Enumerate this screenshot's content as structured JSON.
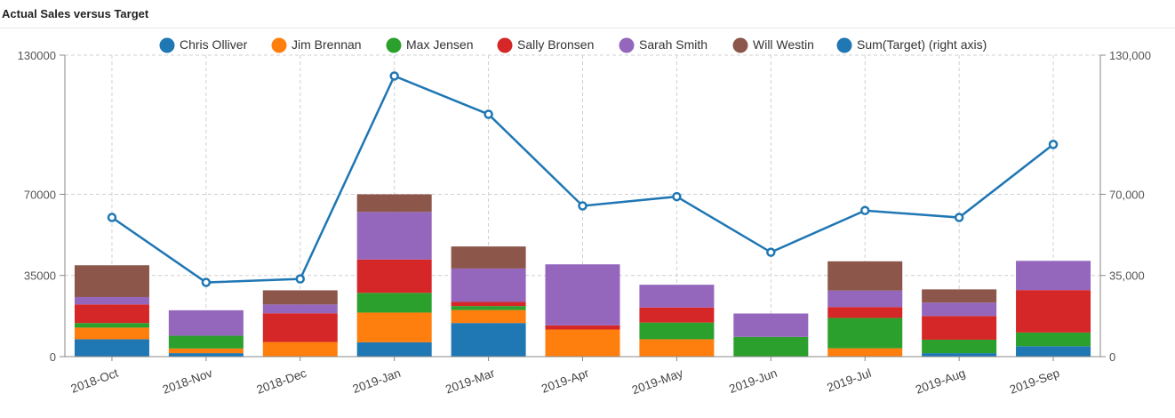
{
  "panel": {
    "title": "Actual Sales versus Target"
  },
  "colors": {
    "Chris Olliver": "#1f77b4",
    "Jim Brennan": "#ff7f0e",
    "Max Jensen": "#2ca02c",
    "Sally Bronsen": "#d62728",
    "Sarah Smith": "#9467bd",
    "Will Westin": "#8c564b",
    "Sum(Target) (right axis)": "#1f77b4"
  },
  "chart_data": {
    "type": "bar",
    "title": "Actual Sales versus Target",
    "stacked": true,
    "categories": [
      "2018-Oct",
      "2018-Nov",
      "2018-Dec",
      "2019-Jan",
      "2019-Mar",
      "2019-Apr",
      "2019-May",
      "2019-Jun",
      "2019-Jul",
      "2019-Aug",
      "2019-Sep"
    ],
    "ylim": [
      0,
      130000
    ],
    "y2lim": [
      0,
      130000
    ],
    "yticks": [
      "0",
      "35000",
      "70000",
      "130000"
    ],
    "y2ticks": [
      "0",
      "35,000",
      "70,000",
      "130,000"
    ],
    "tick_values": [
      0,
      35000,
      70000,
      130000
    ],
    "legend_position": "top",
    "grid": true,
    "series": [
      {
        "name": "Chris Olliver",
        "values": [
          7500,
          1500,
          0,
          6200,
          14500,
          0,
          0,
          0,
          0,
          1500,
          4500
        ]
      },
      {
        "name": "Jim Brennan",
        "values": [
          5000,
          2000,
          6300,
          12800,
          5600,
          11700,
          7500,
          0,
          3600,
          0,
          0
        ]
      },
      {
        "name": "Max Jensen",
        "values": [
          2000,
          5500,
          0,
          8500,
          1700,
          0,
          7200,
          8500,
          13100,
          5800,
          5900
        ]
      },
      {
        "name": "Sally Bronsen",
        "values": [
          8000,
          0,
          12400,
          14400,
          1800,
          1800,
          6500,
          0,
          4700,
          10200,
          18300
        ]
      },
      {
        "name": "Sarah Smith",
        "values": [
          3200,
          11000,
          3800,
          20500,
          14400,
          26300,
          9800,
          10100,
          7100,
          5800,
          12600
        ]
      },
      {
        "name": "Will Westin",
        "values": [
          13700,
          0,
          6100,
          7600,
          9500,
          0,
          0,
          0,
          12600,
          5700,
          0
        ]
      },
      {
        "name": "Sum(Target) (right axis)",
        "type": "line",
        "axis": "right",
        "values": [
          60000,
          32000,
          33500,
          121000,
          104500,
          65000,
          69000,
          45000,
          63000,
          60000,
          91500
        ]
      }
    ]
  }
}
